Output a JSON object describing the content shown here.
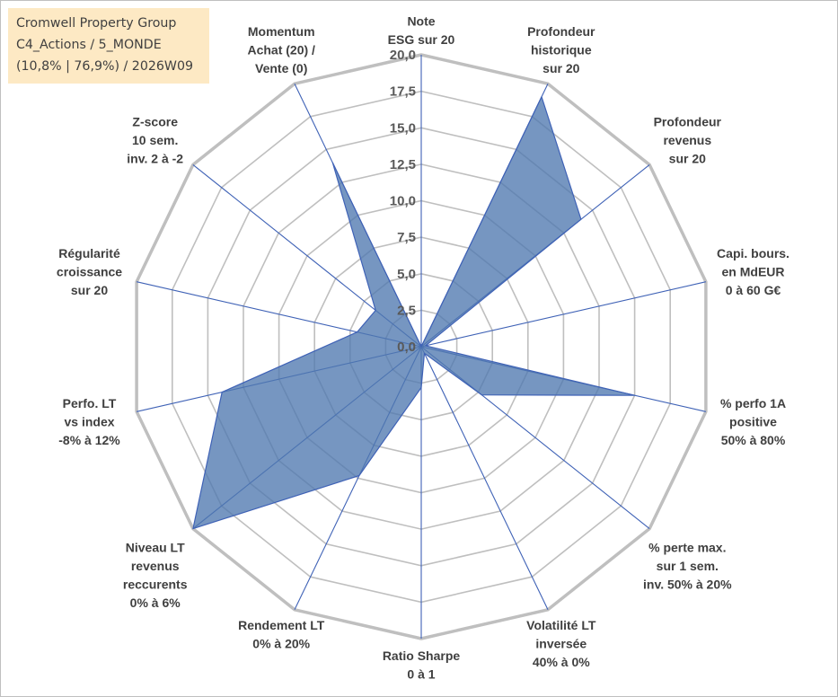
{
  "chart_box": {
    "lines": [
      "Cromwell Property Group",
      "C4_Actions / 5_MONDE",
      "(10,8% | 76,9%) / 2026W09"
    ]
  },
  "colors": {
    "fill": "#4f79b0",
    "stroke": "#3f62b6",
    "grid": "#bfbfbf",
    "spoke": "#3f62b6",
    "box": "#fde9c4"
  },
  "chart_data": {
    "type": "radar",
    "range": [
      0,
      20
    ],
    "tick_step": 2.5,
    "tick_labels": [
      "0,0",
      "2,5",
      "5,0",
      "7,5",
      "10,0",
      "12,5",
      "15,0",
      "17,5",
      "20,0"
    ],
    "axes": [
      {
        "label": [
          "Note",
          "ESG sur 20"
        ],
        "value": 0
      },
      {
        "label": [
          "Profondeur",
          "historique",
          "sur 20"
        ],
        "value": 19
      },
      {
        "label": [
          "Profondeur",
          "revenus",
          "sur 20"
        ],
        "value": 14
      },
      {
        "label": [
          "Capi. bours.",
          "en MdEUR",
          "0 à 60 G€"
        ],
        "value": 0.3
      },
      {
        "label": [
          "% perfo 1A",
          "positive",
          "50% à 80%"
        ],
        "value": 15
      },
      {
        "label": [
          "% perte max.",
          "sur 1 sem.",
          "inv. 50% à 20%"
        ],
        "value": 5.3
      },
      {
        "label": [
          "Volatilité LT",
          "inversée",
          "40% à 0%"
        ],
        "value": 0.5
      },
      {
        "label": [
          "Ratio Sharpe",
          "0 à 1"
        ],
        "value": 2.8
      },
      {
        "label": [
          "Rendement LT",
          "0% à 20%"
        ],
        "value": 9.8
      },
      {
        "label": [
          "Niveau LT",
          "revenus",
          "reccurents",
          "0% à 6%"
        ],
        "value": 20
      },
      {
        "label": [
          "Perfo. LT",
          "vs index",
          "-8% à 12%"
        ],
        "value": 14
      },
      {
        "label": [
          "Régularité",
          "croissance",
          "sur 20"
        ],
        "value": 4.5
      },
      {
        "label": [
          "Z-score",
          "10 sem.",
          "inv. 2 à -2"
        ],
        "value": 4
      },
      {
        "label": [
          "Momentum",
          "Achat (20) /",
          "Vente (0)"
        ],
        "value": 14
      }
    ]
  }
}
